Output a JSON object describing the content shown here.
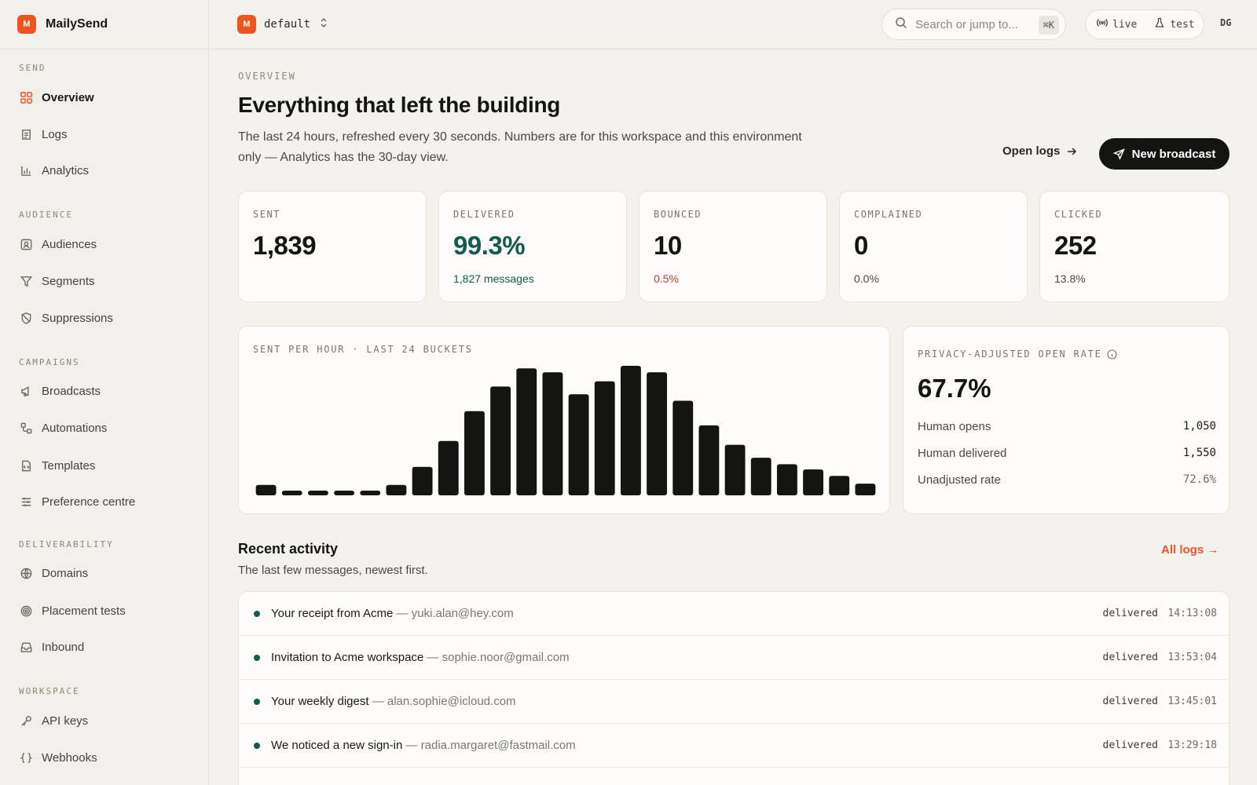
{
  "app": {
    "name": "MailySend",
    "logo_letter": "M"
  },
  "topbar": {
    "workspace_letter": "M",
    "workspace": "default",
    "search_placeholder": "Search or jump to...",
    "search_shortcut": "⌘K",
    "env_live": "live",
    "env_test": "test",
    "user_initials": "DG"
  },
  "sidebar": {
    "sections": [
      {
        "label": "SEND",
        "items": [
          "Overview",
          "Logs",
          "Analytics"
        ]
      },
      {
        "label": "AUDIENCE",
        "items": [
          "Audiences",
          "Segments",
          "Suppressions"
        ]
      },
      {
        "label": "CAMPAIGNS",
        "items": [
          "Broadcasts",
          "Automations",
          "Templates",
          "Preference centre"
        ]
      },
      {
        "label": "DELIVERABILITY",
        "items": [
          "Domains",
          "Placement tests",
          "Inbound"
        ]
      },
      {
        "label": "WORKSPACE",
        "items": [
          "API keys",
          "Webhooks"
        ]
      }
    ],
    "active_item": "Overview"
  },
  "header": {
    "eyebrow": "OVERVIEW",
    "title": "Everything that left the building",
    "subtitle": "The last 24 hours, refreshed every 30 seconds. Numbers are for this workspace and this environment only — Analytics has the 30-day view.",
    "open_logs": "Open logs",
    "new_broadcast": "New broadcast"
  },
  "stats": [
    {
      "label": "SENT",
      "value": "1,839",
      "sub": ""
    },
    {
      "label": "DELIVERED",
      "value": "99.3%",
      "sub": "1,827 messages"
    },
    {
      "label": "BOUNCED",
      "value": "10",
      "sub": "0.5%"
    },
    {
      "label": "COMPLAINED",
      "value": "0",
      "sub": "0.0%"
    },
    {
      "label": "CLICKED",
      "value": "252",
      "sub": "13.8%"
    }
  ],
  "chart_data": {
    "type": "bar",
    "title": "SENT PER HOUR · LAST 24 BUCKETS",
    "values": [
      8,
      3,
      3,
      3,
      3,
      8,
      22,
      42,
      65,
      84,
      98,
      95,
      78,
      88,
      100,
      95,
      73,
      54,
      39,
      29,
      24,
      20,
      15,
      9
    ],
    "ylim": [
      0,
      100
    ],
    "grid": false,
    "bar_color": "#141412"
  },
  "open_rate": {
    "title": "PRIVACY-ADJUSTED OPEN RATE",
    "value": "67.7%",
    "rows": [
      {
        "label": "Human opens",
        "value": "1,050"
      },
      {
        "label": "Human delivered",
        "value": "1,550"
      },
      {
        "label": "Unadjusted rate",
        "value": "72.6%"
      }
    ]
  },
  "activity": {
    "title": "Recent activity",
    "subtitle": "The last few messages, newest first.",
    "all_logs": "All logs →",
    "rows": [
      {
        "subject": "Your receipt from Acme",
        "email": "yuki.alan@hey.com",
        "status": "delivered",
        "time": "14:13:08"
      },
      {
        "subject": "Invitation to Acme workspace",
        "email": "sophie.noor@gmail.com",
        "status": "delivered",
        "time": "13:53:04"
      },
      {
        "subject": "Your weekly digest",
        "email": "alan.sophie@icloud.com",
        "status": "delivered",
        "time": "13:45:01"
      },
      {
        "subject": "We noticed a new sign-in",
        "email": "radia.margaret@fastmail.com",
        "status": "delivered",
        "time": "13:29:18"
      }
    ]
  },
  "colors": {
    "accent": "#f0541e",
    "success": "#135b4c",
    "danger": "#c03a2b",
    "ink": "#141412",
    "background": "#f4f2ec"
  }
}
